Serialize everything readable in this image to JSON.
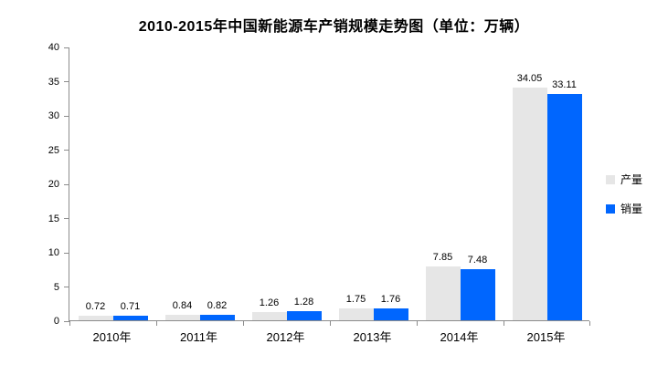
{
  "chart_data": {
    "type": "bar",
    "title": "2010-2015年中国新能源车产销规模走势图（单位：万辆）",
    "categories": [
      "2010年",
      "2011年",
      "2012年",
      "2013年",
      "2014年",
      "2015年"
    ],
    "series": [
      {
        "key": "production",
        "name": "产量",
        "color": "#e6e6e6",
        "values": [
          0.72,
          0.84,
          1.26,
          1.75,
          7.85,
          34.05
        ]
      },
      {
        "key": "sales",
        "name": "销量",
        "color": "#0066fe",
        "values": [
          0.71,
          0.82,
          1.28,
          1.76,
          7.48,
          33.11
        ]
      }
    ],
    "xlabel": "",
    "ylabel": "",
    "ylim": [
      0,
      40
    ],
    "yticks": [
      0,
      5,
      10,
      15,
      20,
      25,
      30,
      35,
      40
    ],
    "grid": false,
    "legend_position": "right",
    "axis_color": "#8c8c8c",
    "text_color": "#000000",
    "background_color": "#ffffff"
  }
}
